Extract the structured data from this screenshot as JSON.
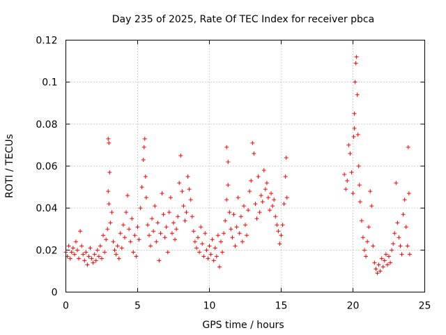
{
  "chart_data": {
    "type": "scatter",
    "title": "Day 235 of 2025, Rate Of TEC Index for receiver pbca",
    "xlabel": "GPS time / hours",
    "ylabel": "ROTI / TECUs",
    "xlim": [
      0,
      25
    ],
    "ylim": [
      0,
      0.12
    ],
    "xticks": [
      0,
      5,
      10,
      15,
      20,
      25
    ],
    "xtick_labels": [
      "0",
      "5",
      "10",
      "15",
      "20",
      "25"
    ],
    "yticks": [
      0,
      0.02,
      0.04,
      0.06,
      0.08,
      0.1,
      0.12
    ],
    "ytick_labels": [
      "0",
      "0.02",
      "0.04",
      "0.06",
      "0.08",
      "0.1",
      "0.12"
    ],
    "grid": true,
    "marker": "+",
    "color": "#ff0000",
    "series": [
      {
        "points": [
          [
            0.0,
            0.019
          ],
          [
            0.1,
            0.017
          ],
          [
            0.2,
            0.022
          ],
          [
            0.3,
            0.016
          ],
          [
            0.4,
            0.019
          ],
          [
            0.5,
            0.021
          ],
          [
            0.6,
            0.018
          ],
          [
            0.7,
            0.024
          ],
          [
            0.8,
            0.02
          ],
          [
            0.9,
            0.016
          ],
          [
            1.0,
            0.029
          ],
          [
            1.1,
            0.022
          ],
          [
            1.2,
            0.018
          ],
          [
            1.3,
            0.015
          ],
          [
            1.4,
            0.019
          ],
          [
            1.5,
            0.013
          ],
          [
            1.6,
            0.017
          ],
          [
            1.7,
            0.021
          ],
          [
            1.8,
            0.016
          ],
          [
            1.9,
            0.014
          ],
          [
            2.0,
            0.018
          ],
          [
            2.1,
            0.015
          ],
          [
            2.2,
            0.02
          ],
          [
            2.3,
            0.017
          ],
          [
            2.4,
            0.022
          ],
          [
            2.5,
            0.016
          ],
          [
            2.6,
            0.027
          ],
          [
            2.7,
            0.019
          ],
          [
            2.8,
            0.025
          ],
          [
            2.9,
            0.03
          ],
          [
            2.95,
            0.073
          ],
          [
            3.0,
            0.071
          ],
          [
            3.05,
            0.057
          ],
          [
            3.0,
            0.042
          ],
          [
            2.95,
            0.048
          ],
          [
            3.1,
            0.033
          ],
          [
            3.2,
            0.038
          ],
          [
            3.3,
            0.024
          ],
          [
            3.4,
            0.02
          ],
          [
            3.5,
            0.018
          ],
          [
            3.6,
            0.022
          ],
          [
            3.7,
            0.016
          ],
          [
            3.8,
            0.028
          ],
          [
            3.9,
            0.021
          ],
          [
            4.0,
            0.032
          ],
          [
            4.1,
            0.026
          ],
          [
            4.2,
            0.038
          ],
          [
            4.3,
            0.046
          ],
          [
            4.4,
            0.03
          ],
          [
            4.5,
            0.024
          ],
          [
            4.6,
            0.035
          ],
          [
            4.7,
            0.019
          ],
          [
            4.8,
            0.027
          ],
          [
            4.9,
            0.017
          ],
          [
            5.0,
            0.031
          ],
          [
            5.1,
            0.025
          ],
          [
            5.2,
            0.04
          ],
          [
            5.3,
            0.05
          ],
          [
            5.4,
            0.063
          ],
          [
            5.5,
            0.073
          ],
          [
            5.45,
            0.069
          ],
          [
            5.55,
            0.055
          ],
          [
            5.6,
            0.045
          ],
          [
            5.7,
            0.032
          ],
          [
            5.8,
            0.027
          ],
          [
            5.9,
            0.022
          ],
          [
            6.0,
            0.035
          ],
          [
            6.1,
            0.029
          ],
          [
            6.2,
            0.041
          ],
          [
            6.3,
            0.024
          ],
          [
            6.4,
            0.033
          ],
          [
            6.5,
            0.015
          ],
          [
            6.6,
            0.028
          ],
          [
            6.7,
            0.047
          ],
          [
            6.8,
            0.037
          ],
          [
            6.9,
            0.026
          ],
          [
            7.0,
            0.031
          ],
          [
            7.1,
            0.019
          ],
          [
            7.2,
            0.038
          ],
          [
            7.3,
            0.045
          ],
          [
            7.4,
            0.028
          ],
          [
            7.5,
            0.033
          ],
          [
            7.6,
            0.025
          ],
          [
            7.7,
            0.03
          ],
          [
            7.8,
            0.036
          ],
          [
            7.9,
            0.052
          ],
          [
            8.0,
            0.065
          ],
          [
            8.1,
            0.048
          ],
          [
            8.2,
            0.041
          ],
          [
            8.3,
            0.034
          ],
          [
            8.4,
            0.038
          ],
          [
            8.5,
            0.055
          ],
          [
            8.6,
            0.049
          ],
          [
            8.7,
            0.044
          ],
          [
            8.8,
            0.036
          ],
          [
            8.9,
            0.029
          ],
          [
            9.0,
            0.024
          ],
          [
            9.1,
            0.021
          ],
          [
            9.2,
            0.026
          ],
          [
            9.3,
            0.019
          ],
          [
            9.4,
            0.031
          ],
          [
            9.5,
            0.023
          ],
          [
            9.6,
            0.017
          ],
          [
            9.7,
            0.028
          ],
          [
            9.8,
            0.02
          ],
          [
            9.9,
            0.016
          ],
          [
            10.0,
            0.022
          ],
          [
            10.1,
            0.018
          ],
          [
            10.2,
            0.025
          ],
          [
            10.3,
            0.015
          ],
          [
            10.4,
            0.021
          ],
          [
            10.5,
            0.017
          ],
          [
            10.6,
            0.027
          ],
          [
            10.7,
            0.012
          ],
          [
            10.8,
            0.024
          ],
          [
            10.9,
            0.019
          ],
          [
            11.0,
            0.028
          ],
          [
            11.1,
            0.034
          ],
          [
            11.2,
            0.044
          ],
          [
            11.3,
            0.062
          ],
          [
            11.2,
            0.069
          ],
          [
            11.3,
            0.051
          ],
          [
            11.4,
            0.038
          ],
          [
            11.5,
            0.03
          ],
          [
            11.6,
            0.026
          ],
          [
            11.7,
            0.037
          ],
          [
            11.8,
            0.022
          ],
          [
            11.9,
            0.031
          ],
          [
            12.0,
            0.045
          ],
          [
            12.1,
            0.028
          ],
          [
            12.2,
            0.036
          ],
          [
            12.3,
            0.024
          ],
          [
            12.4,
            0.041
          ],
          [
            12.5,
            0.032
          ],
          [
            12.6,
            0.027
          ],
          [
            12.7,
            0.039
          ],
          [
            12.8,
            0.048
          ],
          [
            12.9,
            0.053
          ],
          [
            13.0,
            0.071
          ],
          [
            13.1,
            0.066
          ],
          [
            13.2,
            0.042
          ],
          [
            13.3,
            0.035
          ],
          [
            13.4,
            0.055
          ],
          [
            13.5,
            0.038
          ],
          [
            13.6,
            0.046
          ],
          [
            13.7,
            0.043
          ],
          [
            13.8,
            0.058
          ],
          [
            13.9,
            0.049
          ],
          [
            14.0,
            0.052
          ],
          [
            14.1,
            0.045
          ],
          [
            14.2,
            0.039
          ],
          [
            14.3,
            0.047
          ],
          [
            14.4,
            0.041
          ],
          [
            14.5,
            0.044
          ],
          [
            14.6,
            0.036
          ],
          [
            14.7,
            0.032
          ],
          [
            14.8,
            0.029
          ],
          [
            14.9,
            0.023
          ],
          [
            15.0,
            0.027
          ],
          [
            15.1,
            0.032
          ],
          [
            15.2,
            0.042
          ],
          [
            15.3,
            0.055
          ],
          [
            15.35,
            0.064
          ],
          [
            15.4,
            0.045
          ],
          [
            19.4,
            0.056
          ],
          [
            19.5,
            0.049
          ],
          [
            19.6,
            0.053
          ],
          [
            19.7,
            0.07
          ],
          [
            19.8,
            0.066
          ],
          [
            19.9,
            0.057
          ],
          [
            20.0,
            0.047
          ],
          [
            20.05,
            0.074
          ],
          [
            20.1,
            0.085
          ],
          [
            20.15,
            0.1
          ],
          [
            20.2,
            0.109
          ],
          [
            20.25,
            0.112
          ],
          [
            20.3,
            0.094
          ],
          [
            20.1,
            0.078
          ],
          [
            20.35,
            0.075
          ],
          [
            20.4,
            0.06
          ],
          [
            20.45,
            0.051
          ],
          [
            20.5,
            0.043
          ],
          [
            20.6,
            0.034
          ],
          [
            20.7,
            0.026
          ],
          [
            20.8,
            0.02
          ],
          [
            20.9,
            0.017
          ],
          [
            21.0,
            0.024
          ],
          [
            21.1,
            0.031
          ],
          [
            21.2,
            0.048
          ],
          [
            21.3,
            0.041
          ],
          [
            21.4,
            0.022
          ],
          [
            21.5,
            0.014
          ],
          [
            21.6,
            0.011
          ],
          [
            21.7,
            0.009
          ],
          [
            21.8,
            0.013
          ],
          [
            21.9,
            0.01
          ],
          [
            22.0,
            0.016
          ],
          [
            22.1,
            0.012
          ],
          [
            22.2,
            0.015
          ],
          [
            22.3,
            0.018
          ],
          [
            22.4,
            0.013
          ],
          [
            22.5,
            0.017
          ],
          [
            22.6,
            0.014
          ],
          [
            22.7,
            0.02
          ],
          [
            22.8,
            0.023
          ],
          [
            22.9,
            0.028
          ],
          [
            23.0,
            0.052
          ],
          [
            23.1,
            0.033
          ],
          [
            23.2,
            0.026
          ],
          [
            23.3,
            0.022
          ],
          [
            23.4,
            0.018
          ],
          [
            23.5,
            0.037
          ],
          [
            23.6,
            0.044
          ],
          [
            23.7,
            0.031
          ],
          [
            23.8,
            0.022
          ],
          [
            23.85,
            0.069
          ],
          [
            23.9,
            0.047
          ],
          [
            23.95,
            0.018
          ]
        ]
      }
    ]
  }
}
